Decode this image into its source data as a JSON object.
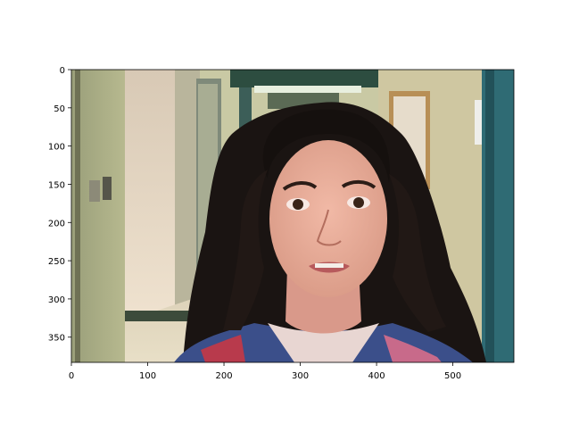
{
  "figure": {
    "kind": "image-plot",
    "image_description_name": "portrait-photo",
    "x_ticks": [
      "0",
      "100",
      "200",
      "300",
      "400",
      "500"
    ],
    "x_tick_values": [
      0,
      100,
      200,
      300,
      400,
      500
    ],
    "y_ticks": [
      "0",
      "50",
      "100",
      "150",
      "200",
      "250",
      "300",
      "350"
    ],
    "y_tick_values": [
      0,
      50,
      100,
      150,
      200,
      250,
      300,
      350
    ],
    "x_range": [
      0,
      580
    ],
    "y_range": [
      0,
      383
    ]
  }
}
